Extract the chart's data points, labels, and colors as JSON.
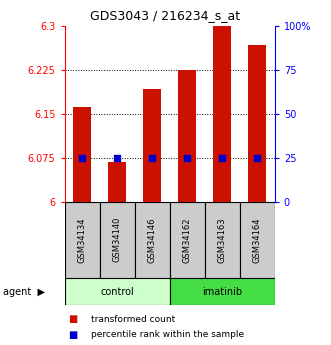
{
  "title": "GDS3043 / 216234_s_at",
  "samples": [
    "GSM34134",
    "GSM34140",
    "GSM34146",
    "GSM34162",
    "GSM34163",
    "GSM34164"
  ],
  "groups": [
    "control",
    "control",
    "control",
    "imatinib",
    "imatinib",
    "imatinib"
  ],
  "transformed_counts": [
    6.162,
    6.068,
    6.192,
    6.225,
    6.302,
    6.268
  ],
  "percentile_ranks": [
    25,
    25,
    25,
    25,
    25,
    25
  ],
  "ylim_left": [
    6.0,
    6.3
  ],
  "ylim_right": [
    0,
    100
  ],
  "yticks_left": [
    6.0,
    6.075,
    6.15,
    6.225,
    6.3
  ],
  "ytick_labels_left": [
    "6",
    "6.075",
    "6.15",
    "6.225",
    "6.3"
  ],
  "yticks_right": [
    0,
    25,
    50,
    75,
    100
  ],
  "ytick_labels_right": [
    "0",
    "25",
    "50",
    "75",
    "100%"
  ],
  "bar_color": "#cc1100",
  "dot_color": "#0000cc",
  "control_bg": "#ccffcc",
  "imatinib_bg": "#44dd44",
  "sample_bg": "#cccccc",
  "bar_width": 0.5,
  "dot_size": 18,
  "legend_items": [
    "transformed count",
    "percentile rank within the sample"
  ],
  "percentile_value": 25,
  "grid_dotted_at": [
    6.075,
    6.15,
    6.225
  ]
}
